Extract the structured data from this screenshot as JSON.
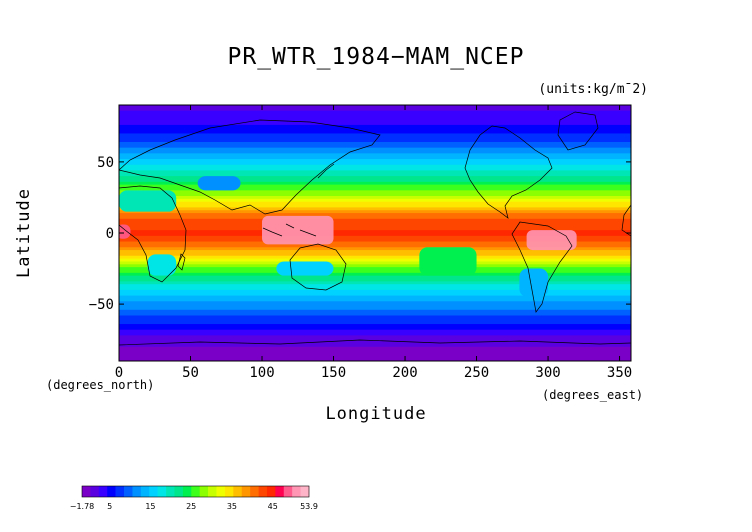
{
  "title": "PR_WTR_1984−MAM_NCEP",
  "units": "(units:kg/m¯2)",
  "x_axis": {
    "label": "Longitude",
    "unit": "(degrees_east)",
    "ticks": [
      "0",
      "50",
      "100",
      "150",
      "200",
      "250",
      "300",
      "350"
    ],
    "tick_values": [
      0,
      50,
      100,
      150,
      200,
      250,
      300,
      350
    ],
    "range": [
      0,
      358
    ]
  },
  "y_axis": {
    "label": "Latitude",
    "unit": "(degrees_north)",
    "ticks": [
      "50",
      "0",
      "−50"
    ],
    "tick_values": [
      50,
      0,
      -50
    ],
    "range": [
      -90,
      90
    ]
  },
  "colorbar": {
    "labels": [
      "−1.78",
      "5",
      "15",
      "25",
      "35",
      "45",
      "53.9"
    ],
    "label_values": [
      -1.78,
      5,
      15,
      25,
      35,
      45,
      53.9
    ],
    "colors": [
      "#7a00c8",
      "#5a00e0",
      "#3a00ff",
      "#0000ff",
      "#0030ff",
      "#0060ff",
      "#0090ff",
      "#00b4ff",
      "#00d2ff",
      "#00e6e6",
      "#00e6b4",
      "#00e68c",
      "#00f050",
      "#3cff1e",
      "#8cff00",
      "#c8ff00",
      "#f0ff00",
      "#ffe600",
      "#ffbe00",
      "#ff9600",
      "#ff6e00",
      "#ff4600",
      "#ff2800",
      "#ff0050",
      "#ff5a8c",
      "#ff96b4",
      "#ffb4c8"
    ]
  },
  "chart_data": {
    "type": "heatmap",
    "title": "PR_WTR_1984−MAM_NCEP",
    "xlabel": "Longitude",
    "ylabel": "Latitude",
    "xlim": [
      0,
      358
    ],
    "ylim": [
      -90,
      90
    ],
    "units": "kg/m^2",
    "value_range": [
      -1.78,
      53.9
    ],
    "zonal_mean_profile": {
      "lat": [
        90,
        80,
        70,
        60,
        50,
        40,
        30,
        20,
        10,
        0,
        -10,
        -20,
        -30,
        -40,
        -50,
        -60,
        -70,
        -80,
        -90
      ],
      "value": [
        2,
        3,
        6,
        11,
        16,
        21,
        27,
        34,
        42,
        44,
        40,
        31,
        23,
        17,
        12,
        8,
        3,
        0,
        -1.78
      ]
    }
  }
}
